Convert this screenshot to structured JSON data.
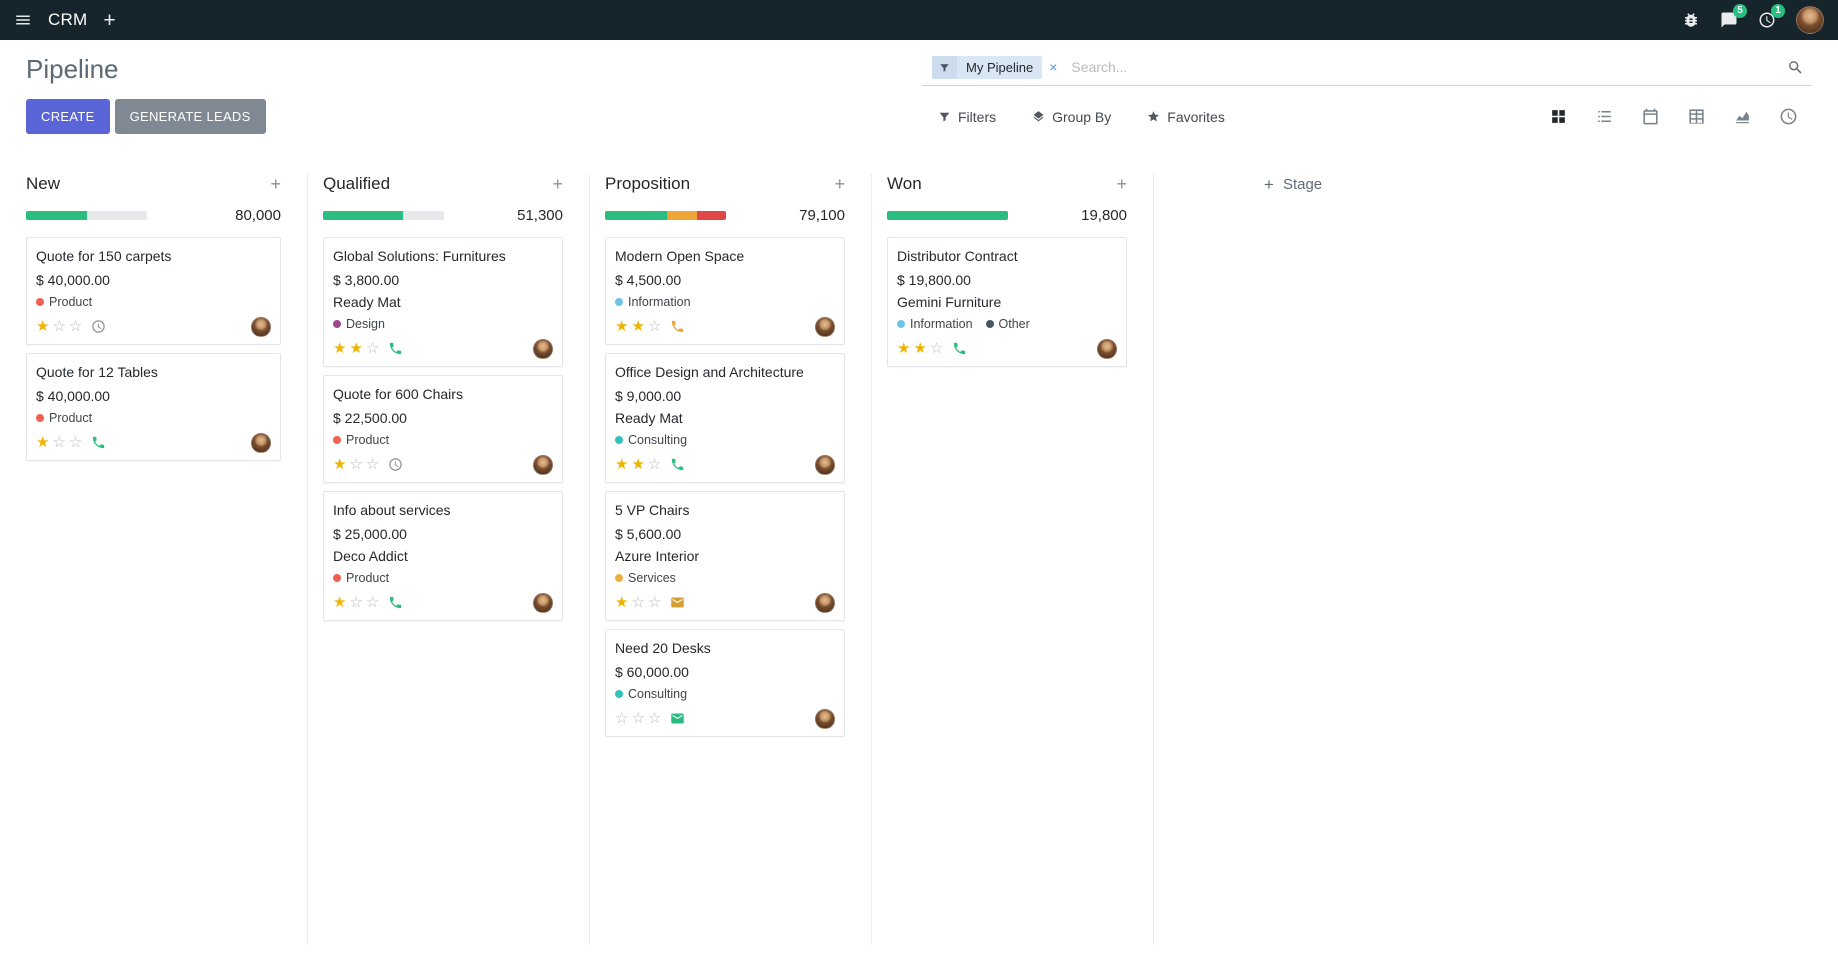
{
  "topbar": {
    "app_name": "CRM",
    "messages_badge": "5",
    "activities_badge": "1"
  },
  "control_panel": {
    "title": "Pipeline",
    "create_label": "CREATE",
    "generate_leads_label": "GENERATE LEADS",
    "search": {
      "facet_label": "My Pipeline",
      "remove_label": "×",
      "placeholder": "Search..."
    },
    "filters_label": "Filters",
    "group_by_label": "Group By",
    "favorites_label": "Favorites",
    "view_switcher": [
      "kanban",
      "list",
      "calendar",
      "pivot",
      "graph",
      "activity"
    ],
    "active_view": "kanban"
  },
  "colors": {
    "primary": "#5a65d8",
    "topbar_bg": "#16242c",
    "green": "#29bd7f",
    "yellow": "#efa537",
    "red": "#e04747",
    "progress_track": "#e6e8eb",
    "star_gold": "#efb400"
  },
  "board": {
    "add_stage_label": "Stage",
    "columns": [
      {
        "name": "New",
        "total": "80,000",
        "progress": [
          {
            "color": "#29bd7f",
            "pct": 50
          }
        ],
        "cards": [
          {
            "title": "Quote for 150 carpets",
            "amount": "$ 40,000.00",
            "tags": [
              {
                "label": "Product",
                "color": "#f06050"
              }
            ],
            "stars": 1,
            "activity": {
              "icon": "clock",
              "color": "#8a9097"
            }
          },
          {
            "title": "Quote for 12 Tables",
            "amount": "$ 40,000.00",
            "tags": [
              {
                "label": "Product",
                "color": "#f06050"
              }
            ],
            "stars": 1,
            "activity": {
              "icon": "phone",
              "color": "#29bd7f"
            }
          }
        ]
      },
      {
        "name": "Qualified",
        "total": "51,300",
        "progress": [
          {
            "color": "#29bd7f",
            "pct": 66
          }
        ],
        "cards": [
          {
            "title": "Global Solutions: Furnitures",
            "amount": "$ 3,800.00",
            "partner": "Ready Mat",
            "tags": [
              {
                "label": "Design",
                "color": "#a0468e"
              }
            ],
            "stars": 2,
            "activity": {
              "icon": "phone",
              "color": "#29bd7f"
            }
          },
          {
            "title": "Quote for 600 Chairs",
            "amount": "$ 22,500.00",
            "tags": [
              {
                "label": "Product",
                "color": "#f06050"
              }
            ],
            "stars": 1,
            "activity": {
              "icon": "clock",
              "color": "#8a9097"
            }
          },
          {
            "title": "Info about services",
            "amount": "$ 25,000.00",
            "partner": "Deco Addict",
            "tags": [
              {
                "label": "Product",
                "color": "#f06050"
              }
            ],
            "stars": 1,
            "activity": {
              "icon": "phone",
              "color": "#29bd7f"
            }
          }
        ]
      },
      {
        "name": "Proposition",
        "total": "79,100",
        "progress": [
          {
            "color": "#29bd7f",
            "pct": 51
          },
          {
            "color": "#efa537",
            "pct": 25
          },
          {
            "color": "#e04747",
            "pct": 24
          }
        ],
        "cards": [
          {
            "title": "Modern Open Space",
            "amount": "$ 4,500.00",
            "tags": [
              {
                "label": "Information",
                "color": "#6fc3ea"
              }
            ],
            "stars": 2,
            "activity": {
              "icon": "phone",
              "color": "#efa537"
            }
          },
          {
            "title": "Office Design and Architecture",
            "amount": "$ 9,000.00",
            "partner": "Ready Mat",
            "tags": [
              {
                "label": "Consulting",
                "color": "#33c2c0"
              }
            ],
            "stars": 2,
            "activity": {
              "icon": "phone",
              "color": "#29bd7f"
            }
          },
          {
            "title": "5 VP Chairs",
            "amount": "$ 5,600.00",
            "partner": "Azure Interior",
            "tags": [
              {
                "label": "Services",
                "color": "#efb041"
              }
            ],
            "stars": 1,
            "activity": {
              "icon": "envelope",
              "color": "#d4a033"
            }
          },
          {
            "title": "Need 20 Desks",
            "amount": "$ 60,000.00",
            "tags": [
              {
                "label": "Consulting",
                "color": "#33c2c0"
              }
            ],
            "stars": 0,
            "activity": {
              "icon": "envelope",
              "color": "#29bd7f"
            }
          }
        ]
      },
      {
        "name": "Won",
        "total": "19,800",
        "progress": [
          {
            "color": "#29bd7f",
            "pct": 100
          }
        ],
        "cards": [
          {
            "title": "Distributor Contract",
            "amount": "$ 19,800.00",
            "partner": "Gemini Furniture",
            "tags": [
              {
                "label": "Information",
                "color": "#6fc3ea"
              },
              {
                "label": "Other",
                "color": "#445762"
              }
            ],
            "stars": 2,
            "activity": {
              "icon": "phone",
              "color": "#29bd7f"
            }
          }
        ]
      }
    ]
  }
}
